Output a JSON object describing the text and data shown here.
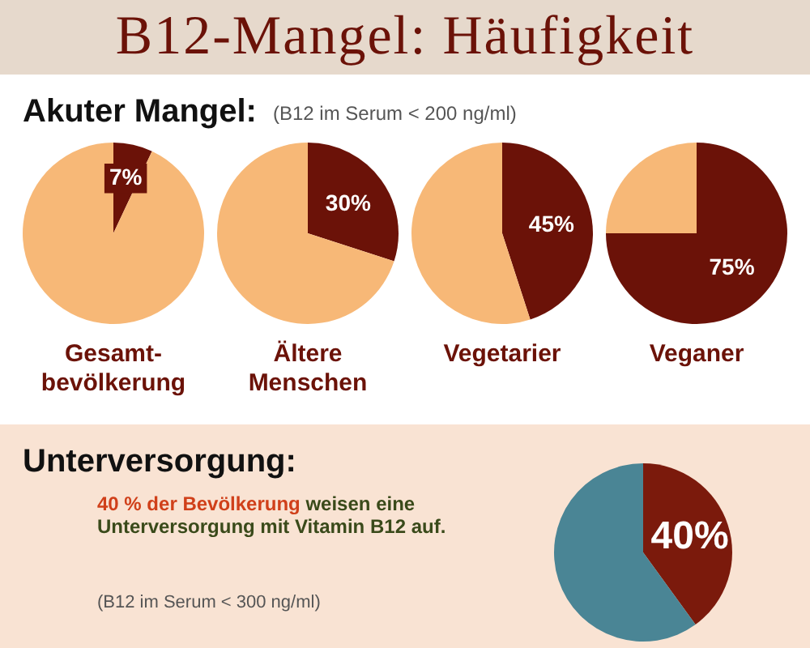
{
  "chart_data": [
    {
      "type": "pie",
      "title": "B12-Mangel: Häufigkeit",
      "subtitle": "Akuter Mangel:",
      "annotations": [
        "(B12 im Serum < 200 ng/ml)"
      ],
      "xlabel": "Gesamt-bevölkerung",
      "categories": [
        null,
        null
      ],
      "values": [
        7,
        93
      ],
      "colors": [
        "#6b1208",
        "#f7b877"
      ],
      "value_labels": [
        "7%",
        null
      ]
    },
    {
      "type": "pie",
      "xlabel": "Ältere Menschen",
      "categories": [
        null,
        null
      ],
      "values": [
        30,
        70
      ],
      "colors": [
        "#6b1208",
        "#f7b877"
      ],
      "value_labels": [
        "30%",
        null
      ]
    },
    {
      "type": "pie",
      "xlabel": "Vegetarier",
      "categories": [
        null,
        null
      ],
      "values": [
        45,
        55
      ],
      "colors": [
        "#6b1208",
        "#f7b877"
      ],
      "value_labels": [
        "45%",
        null
      ]
    },
    {
      "type": "pie",
      "xlabel": "Veganer",
      "categories": [
        null,
        null
      ],
      "values": [
        75,
        25
      ],
      "colors": [
        "#6b1208",
        "#f7b877"
      ],
      "value_labels": [
        "75%",
        null
      ]
    },
    {
      "type": "pie",
      "title": "Unterversorgung:",
      "annotations": [
        "40 % der Bevölkerung",
        "weisen eine Unterversorgung mit Vitamin B12 auf.",
        "(B12 im Serum < 300 ng/ml)"
      ],
      "categories": [
        null,
        null
      ],
      "values": [
        40,
        60
      ],
      "colors": [
        "#7b1a0c",
        "#4a8595"
      ],
      "value_labels": [
        "40%",
        null
      ]
    }
  ]
}
